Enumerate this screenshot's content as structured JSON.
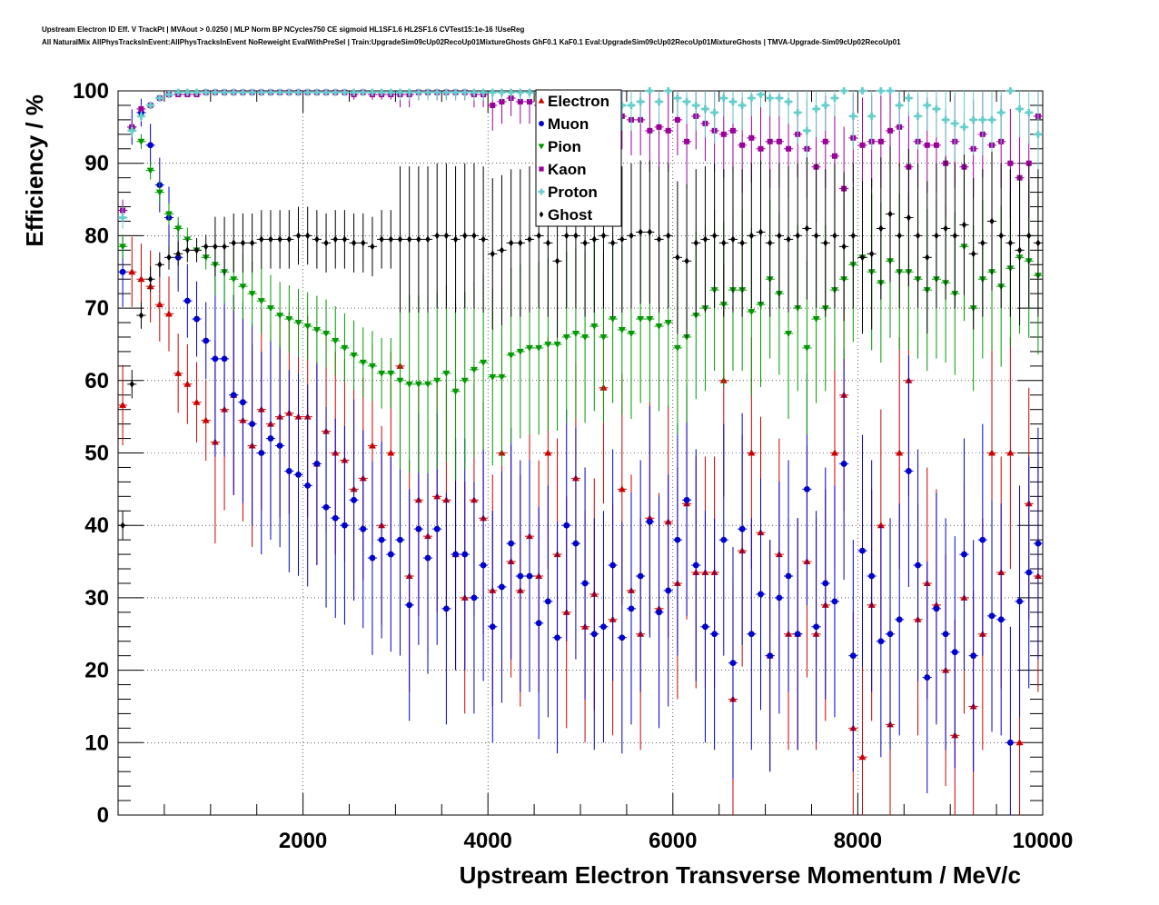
{
  "title_line1": "Upstream Electron ID Eff. V TrackPt | MVAout > 0.0250 | MLP Norm BP NCycles750 CE sigmoid HL1SF1.6 HL2SF1.6 CVTest15:1e-16 !UseReg",
  "title_line2": "All NaturalMix AllPhysTracksInEvent:AllPhysTracksInEvent NoReweight EvalWithPreSel | Train:UpgradeSim09cUp02RecoUp01MixtureGhosts GhF0.1 KaF0.1 Eval:UpgradeSim09cUp02RecoUp01MixtureGhosts | TMVA-Upgrade-Sim09cUp02RecoUp01",
  "chart_data": {
    "type": "scatter",
    "xlabel": "Upstream Electron Transverse Momentum / MeV/c",
    "ylabel": "Efficiency / %",
    "xlim": [
      0,
      10000
    ],
    "ylim": [
      0,
      100
    ],
    "x_ticks": [
      "2000",
      "4000",
      "6000",
      "8000",
      "10000"
    ],
    "y_ticks": [
      "0",
      "10",
      "20",
      "30",
      "40",
      "50",
      "60",
      "70",
      "80",
      "90",
      "100"
    ],
    "grid": true,
    "legend_position": "top-center",
    "x": [
      50,
      150,
      250,
      350,
      450,
      550,
      650,
      750,
      850,
      950,
      1050,
      1150,
      1250,
      1350,
      1450,
      1550,
      1650,
      1750,
      1850,
      1950,
      2050,
      2150,
      2250,
      2350,
      2450,
      2550,
      2650,
      2750,
      2850,
      2950,
      3050,
      3150,
      3250,
      3350,
      3450,
      3550,
      3650,
      3750,
      3850,
      3950,
      4050,
      4150,
      4250,
      4350,
      4450,
      4550,
      4650,
      4750,
      4850,
      4950,
      5050,
      5150,
      5250,
      5350,
      5450,
      5550,
      5650,
      5750,
      5850,
      5950,
      6050,
      6150,
      6250,
      6350,
      6450,
      6550,
      6650,
      6750,
      6850,
      6950,
      7050,
      7150,
      7250,
      7350,
      7450,
      7550,
      7650,
      7750,
      7850,
      7950,
      8050,
      8150,
      8250,
      8350,
      8450,
      8550,
      8650,
      8750,
      8850,
      8950,
      9050,
      9150,
      9250,
      9350,
      9450,
      9550,
      9650,
      9750,
      9850,
      9950
    ],
    "series": [
      {
        "name": "Electron",
        "color": "#cc0000",
        "marker": "triangle-up",
        "values": [
          56.6,
          75,
          74,
          73,
          70.5,
          69.2,
          61,
          59.5,
          57,
          54.5,
          51.5,
          56,
          58,
          54.5,
          51,
          56,
          54,
          55,
          55.5,
          55,
          55,
          48.5,
          53,
          50,
          49,
          45,
          46.5,
          51,
          40,
          50,
          62,
          33,
          43.5,
          38.5,
          44,
          43.5,
          36,
          30,
          43.5,
          41,
          31,
          50,
          35,
          31,
          38.5,
          33,
          50,
          36,
          28,
          46.5,
          26,
          30.5,
          59,
          27,
          45,
          31,
          25,
          41,
          28.5,
          40.5,
          32,
          43,
          33.5,
          33.5,
          33.5,
          60,
          16,
          36.5,
          50,
          39,
          22,
          36,
          25,
          25,
          35,
          25,
          29,
          50,
          58,
          12,
          8,
          29,
          40,
          12.5,
          50,
          60,
          27,
          32,
          29,
          20,
          11,
          30,
          15,
          25,
          50,
          33.5,
          50,
          10,
          43,
          33
        ]
      },
      {
        "name": "Muon",
        "color": "#0000cc",
        "marker": "circle",
        "values": [
          75,
          95,
          97,
          92.5,
          87,
          82.5,
          77,
          71,
          68.5,
          65.5,
          63,
          63,
          58,
          57,
          54,
          50,
          52,
          51,
          47.5,
          47,
          45.5,
          48.5,
          42.5,
          41,
          40,
          43.5,
          39.5,
          35.5,
          38,
          36,
          38,
          29,
          39.5,
          35.5,
          39.5,
          28.5,
          36,
          36,
          30,
          34.5,
          26,
          31.5,
          37.5,
          33,
          33,
          26.5,
          29.5,
          24.5,
          40,
          37.5,
          32,
          25,
          26,
          34.5,
          24.5,
          28.5,
          33,
          40.5,
          28,
          31,
          38,
          43.5,
          34.5,
          26,
          25,
          38,
          21,
          39.5,
          25,
          30.5,
          22,
          30,
          33,
          25,
          45,
          26,
          32,
          29.5,
          48.5,
          22,
          36.5,
          33,
          24,
          25,
          27,
          47.5,
          34.5,
          19,
          28.5,
          25,
          22.5,
          36,
          22,
          38,
          27.5,
          27,
          10,
          29.5,
          33.5,
          37.5
        ]
      },
      {
        "name": "Pion",
        "color": "#009900",
        "marker": "triangle-down",
        "values": [
          78.5,
          94.5,
          93,
          89,
          86,
          83,
          81,
          79.5,
          78,
          77,
          76,
          75,
          74,
          73,
          72,
          71,
          70,
          69,
          68.5,
          68,
          67.5,
          67,
          66.5,
          65.5,
          64.5,
          63.5,
          62.5,
          62,
          61,
          61,
          60,
          59.5,
          59.5,
          59.5,
          60,
          61,
          58.5,
          60,
          61.5,
          62.5,
          60.5,
          60.5,
          63.5,
          64,
          64.5,
          64.5,
          65,
          65,
          66,
          66.5,
          66,
          67.5,
          66,
          68.5,
          67,
          66.5,
          68.5,
          68.5,
          67.5,
          68,
          64.5,
          66,
          69,
          70,
          72.5,
          70.5,
          72.5,
          72.5,
          69.5,
          70.5,
          74,
          72,
          66.5,
          70,
          64.5,
          68.5,
          70,
          72.5,
          74,
          76,
          77,
          75,
          73.5,
          76.5,
          75,
          75,
          74,
          72.5,
          74,
          73.5,
          72,
          78.5,
          70,
          74,
          75,
          73,
          75.5,
          77,
          76.5,
          74.5
        ]
      },
      {
        "name": "Kaon",
        "color": "#990099",
        "marker": "square",
        "values": [
          83.5,
          95,
          97.5,
          98,
          99,
          99.5,
          99.5,
          99.5,
          99.5,
          99.8,
          99.8,
          99.8,
          99.8,
          99.8,
          99.8,
          99.8,
          99.8,
          99.8,
          99.8,
          99.8,
          99.8,
          99.8,
          99.8,
          99.8,
          99.8,
          99.5,
          99.8,
          99.5,
          99.5,
          99.5,
          99.5,
          99.5,
          99.8,
          99.8,
          99.8,
          99.8,
          99.8,
          99.8,
          99.5,
          99.5,
          98,
          98.5,
          99,
          98.5,
          98.5,
          98,
          97.5,
          98,
          97.5,
          97.5,
          97,
          97.5,
          96,
          97,
          96.5,
          96,
          96,
          94.5,
          95,
          94.5,
          96,
          93,
          96.5,
          95.5,
          94.5,
          94,
          94.5,
          92.5,
          93.5,
          92,
          93,
          93,
          92,
          94,
          92,
          89.5,
          93,
          91,
          86.5,
          93.5,
          92.5,
          93,
          93,
          94.5,
          95,
          89.5,
          93,
          92.5,
          92.5,
          90,
          93,
          89.5,
          92,
          94,
          92.5,
          93,
          90,
          88,
          90,
          96.5
        ]
      },
      {
        "name": "Proton",
        "color": "#66cccc",
        "marker": "cross",
        "values": [
          82.5,
          94.5,
          96.5,
          98,
          99,
          99.5,
          99.8,
          99.8,
          99.8,
          99.8,
          99.8,
          99.8,
          99.8,
          99.8,
          99.8,
          99.8,
          99.8,
          99.8,
          99.8,
          99.8,
          99.8,
          99.8,
          99.8,
          99.8,
          99.8,
          99.8,
          99.8,
          99.8,
          99.8,
          99.8,
          99.8,
          99.8,
          99.8,
          99.8,
          99.8,
          99.8,
          99.8,
          99.8,
          99.8,
          99.8,
          99.8,
          99.8,
          99.8,
          99.8,
          99.8,
          99.5,
          99.5,
          99,
          99.5,
          99,
          99,
          99,
          98.5,
          98,
          98,
          98,
          98.5,
          100,
          98.5,
          100,
          99,
          98.5,
          98,
          97.5,
          97,
          99,
          98.5,
          98,
          99,
          99.5,
          99,
          99,
          98.5,
          97,
          94.5,
          97.5,
          98,
          99,
          100,
          96.5,
          100,
          96.5,
          100,
          100,
          98,
          99,
          96.5,
          98,
          97.5,
          96,
          95.5,
          95,
          96,
          96,
          96,
          97,
          100,
          97.5,
          97,
          94
        ]
      },
      {
        "name": "Ghost",
        "color": "#000000",
        "marker": "diamond",
        "values": [
          40,
          59.5,
          69,
          74,
          76,
          77,
          77.5,
          78,
          78,
          78.5,
          78.5,
          78.5,
          79,
          79,
          79,
          79.5,
          79.5,
          79.5,
          79.5,
          80,
          80,
          79.5,
          79,
          79.5,
          79.5,
          79,
          79,
          78.5,
          79.5,
          79.5,
          79.5,
          79.5,
          79.5,
          79.5,
          80,
          80,
          79.5,
          80,
          80,
          79.5,
          77.5,
          78,
          79,
          79,
          79.5,
          80,
          79,
          76.5,
          80,
          80,
          79,
          79.5,
          80,
          79,
          79.5,
          80,
          80.5,
          80.5,
          79.5,
          80,
          77,
          76.5,
          79,
          79.5,
          80,
          79,
          79.5,
          79,
          80,
          80.5,
          79,
          80,
          79.5,
          80,
          81,
          80,
          79,
          80,
          78.5,
          80,
          77,
          77.5,
          81,
          83,
          80,
          82.5,
          80,
          77,
          80,
          81,
          80,
          81.5,
          77.5,
          79,
          82,
          80,
          79,
          78,
          80,
          79
        ]
      }
    ],
    "legend": [
      "Electron",
      "Muon",
      "Pion",
      "Kaon",
      "Proton",
      "Ghost"
    ]
  }
}
